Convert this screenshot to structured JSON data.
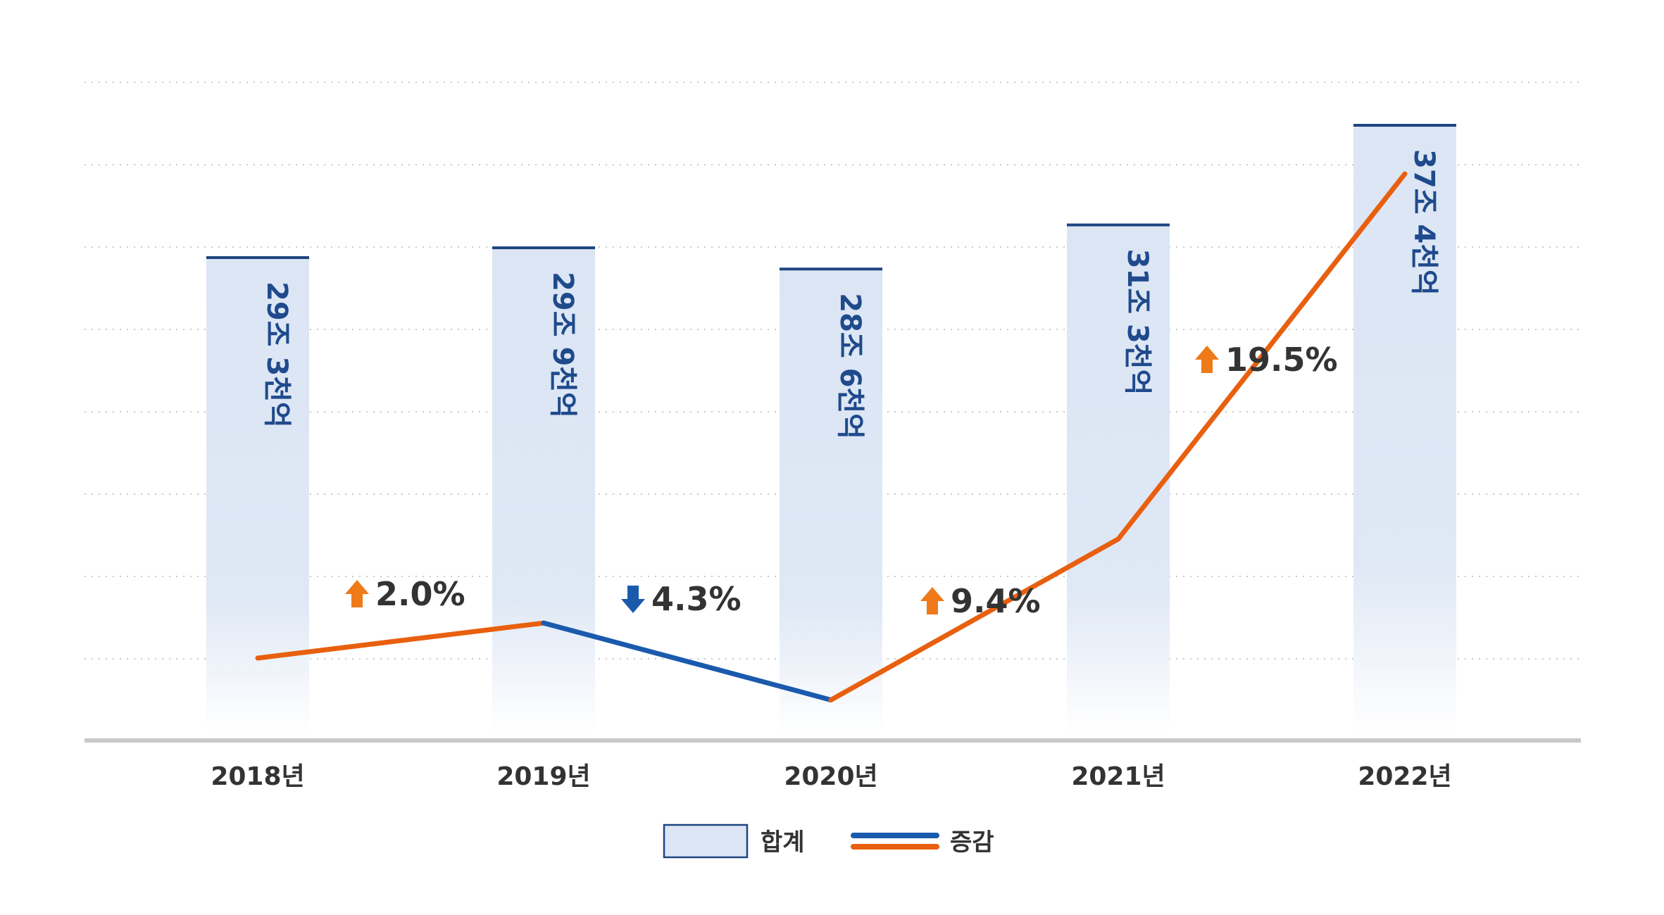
{
  "chart_data": {
    "type": "bar",
    "categories": [
      "2018년",
      "2019년",
      "2020년",
      "2021년",
      "2022년"
    ],
    "series": [
      {
        "name": "합계",
        "type": "bar",
        "values": [
          29.3,
          29.9,
          28.6,
          31.3,
          37.4
        ],
        "labels": [
          "29조 3천억",
          "29조 9천억",
          "28조 6천억",
          "31조 3천억",
          "37조 4천억"
        ]
      },
      {
        "name": "증감",
        "type": "line",
        "values": [
          null,
          2.0,
          -4.3,
          9.4,
          19.5
        ]
      }
    ],
    "changes": [
      {
        "value": 2.0,
        "label": "2.0%",
        "direction": "up"
      },
      {
        "value": -4.3,
        "label": "4.3%",
        "direction": "down"
      },
      {
        "value": 9.4,
        "label": "9.4%",
        "direction": "up"
      },
      {
        "value": 19.5,
        "label": "19.5%",
        "direction": "up"
      }
    ],
    "grid": true,
    "legend_position": "bottom-center"
  },
  "legend": {
    "bar_label": "합계",
    "line_label": "증감"
  },
  "colors": {
    "bar_fill": "#dbe5f4",
    "bar_top": "#1e4580",
    "bar_text": "#1f4a8c",
    "line_up": "#e8600f",
    "line_down": "#1a5aad",
    "arrow_up": "#ee7a1a",
    "arrow_down": "#1a5aad",
    "pct_text": "#333333",
    "axis": "#c8c8c8",
    "grid": "#c9c9c9",
    "tick_text": "#333333"
  }
}
